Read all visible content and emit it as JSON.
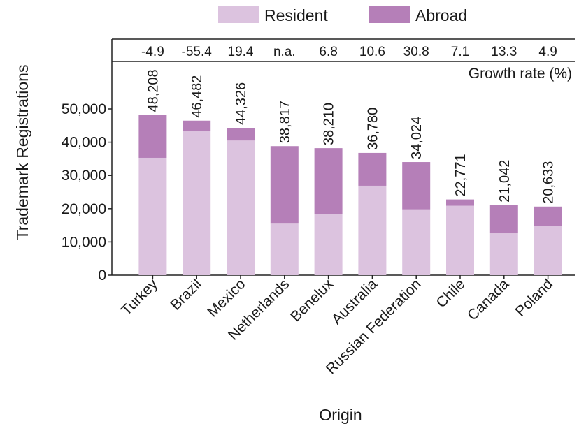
{
  "chart_data": {
    "type": "bar",
    "stacked": true,
    "xlabel": "Origin",
    "ylabel": "Trademark Registrations",
    "ylim": [
      0,
      60000
    ],
    "yticks": [
      0,
      10000,
      20000,
      30000,
      40000,
      50000
    ],
    "ytick_labels": [
      "0",
      "10,000",
      "20,000",
      "30,000",
      "40,000",
      "50,000"
    ],
    "grid": false,
    "legend_position": "top-center",
    "categories": [
      "Turkey",
      "Brazil",
      "Mexico",
      "Netherlands",
      "Benelux",
      "Australia",
      "Russian Federation",
      "Chile",
      "Canada",
      "Poland"
    ],
    "series": [
      {
        "name": "Resident",
        "color": "#dcc3df",
        "values": [
          35300,
          43300,
          40500,
          15500,
          18300,
          26900,
          19800,
          20900,
          12600,
          14800
        ]
      },
      {
        "name": "Abroad",
        "color": "#b57fb8",
        "values": [
          12908,
          3182,
          3826,
          23317,
          19910,
          9880,
          14224,
          1871,
          8442,
          5833
        ]
      }
    ],
    "totals": [
      48208,
      46482,
      44326,
      38817,
      38210,
      36780,
      34024,
      22771,
      21042,
      20633
    ],
    "total_labels": [
      "48,208",
      "46,482",
      "44,326",
      "38,817",
      "38,210",
      "36,780",
      "34,024",
      "22,771",
      "21,042",
      "20,633"
    ],
    "growth_rate_title": "Growth rate (%)",
    "growth_rates": [
      "-4.9",
      "-55.4",
      "19.4",
      "n.a.",
      "6.8",
      "10.6",
      "30.8",
      "7.1",
      "13.3",
      "4.9"
    ]
  }
}
